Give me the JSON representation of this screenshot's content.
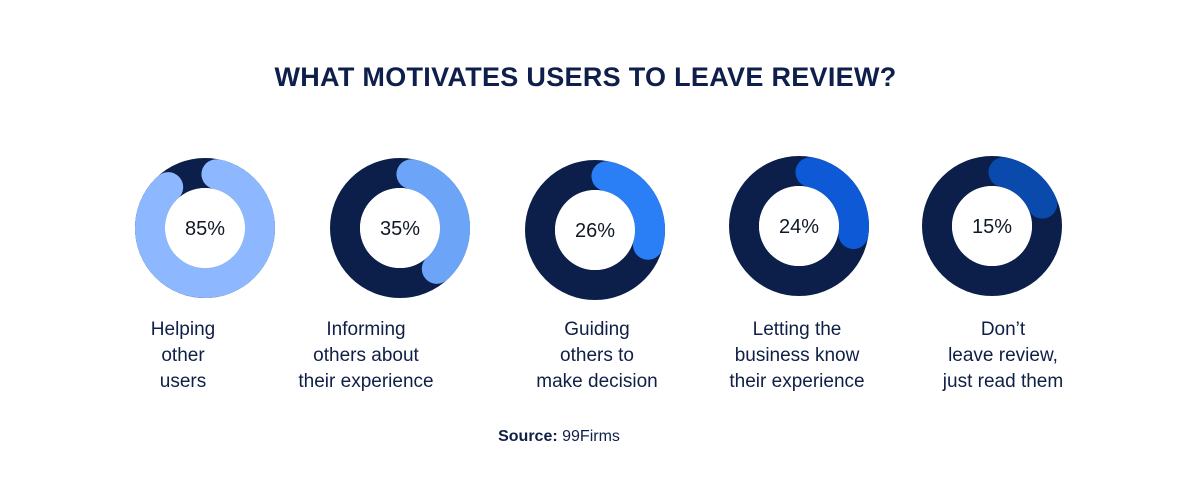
{
  "title": "WHAT MOTIVATES USERS TO LEAVE REVIEW?",
  "chart_data": {
    "type": "donut",
    "title": "WHAT MOTIVATES USERS TO LEAVE REVIEW?",
    "unit": "%",
    "items": [
      {
        "value": 85,
        "label": "85%",
        "caption": [
          "Helping",
          "other",
          "users"
        ],
        "color": "#8db8ff"
      },
      {
        "value": 35,
        "label": "35%",
        "caption": [
          "Informing",
          "others about",
          "their experience"
        ],
        "color": "#6ca4f8"
      },
      {
        "value": 26,
        "label": "26%",
        "caption": [
          "Guiding",
          "others to",
          "make decision"
        ],
        "color": "#2a7ef6"
      },
      {
        "value": 24,
        "label": "24%",
        "caption": [
          "Letting the",
          "business know",
          "their experience"
        ],
        "color": "#0e5ad6"
      },
      {
        "value": 15,
        "label": "15%",
        "caption": [
          "Don’t",
          "leave review,",
          "just read them"
        ],
        "color": "#0b4aad"
      }
    ],
    "track_color": "#0b1f4a"
  },
  "source": {
    "label": "Source:",
    "value": "99Firms"
  }
}
